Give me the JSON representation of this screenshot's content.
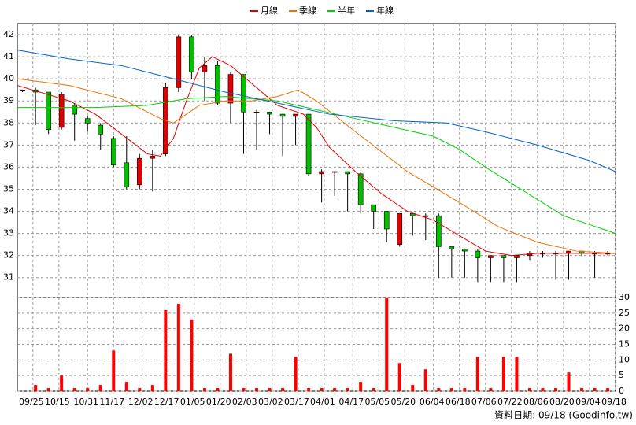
{
  "chart_data": {
    "type": "candlestick",
    "footer": "資料日期: 09/18 (Goodinfo.tw)",
    "xlim": [
      0,
      230
    ],
    "xticks": [
      {
        "value": 6,
        "label": "09/25"
      },
      {
        "value": 16,
        "label": "10/15"
      },
      {
        "value": 27,
        "label": "10/31"
      },
      {
        "value": 37,
        "label": "11/17"
      },
      {
        "value": 48,
        "label": "12/02"
      },
      {
        "value": 58,
        "label": "12/17"
      },
      {
        "value": 68,
        "label": "01/05"
      },
      {
        "value": 78,
        "label": "01/20"
      },
      {
        "value": 88,
        "label": "02/03"
      },
      {
        "value": 98,
        "label": "03/02"
      },
      {
        "value": 108,
        "label": "03/17"
      },
      {
        "value": 118,
        "label": "04/01"
      },
      {
        "value": 129,
        "label": "04/17"
      },
      {
        "value": 139,
        "label": "05/05"
      },
      {
        "value": 149,
        "label": "05/20"
      },
      {
        "value": 160,
        "label": "06/04"
      },
      {
        "value": 170,
        "label": "06/18"
      },
      {
        "value": 180,
        "label": "07/06"
      },
      {
        "value": 190,
        "label": "07/22"
      },
      {
        "value": 200,
        "label": "08/06"
      },
      {
        "value": 210,
        "label": "08/20"
      },
      {
        "value": 220,
        "label": "09/04"
      },
      {
        "value": 230,
        "label": "09/18"
      }
    ],
    "ylim": [
      30.1,
      42.5
    ],
    "yticks": [
      31,
      32,
      33,
      34,
      35,
      36,
      37,
      38,
      39,
      40,
      41,
      42
    ],
    "grid": true,
    "up_color": "#e00000",
    "down_color": "#00c000",
    "x": [
      2,
      7,
      12,
      17,
      22,
      27,
      32,
      37,
      42,
      47,
      52,
      57,
      62,
      67,
      72,
      77,
      82,
      87,
      92,
      97,
      102,
      107,
      112,
      117,
      122,
      127,
      132,
      137,
      142,
      147,
      152,
      157,
      162,
      167,
      172,
      177,
      182,
      187,
      192,
      197,
      202,
      207,
      212,
      217,
      222,
      227
    ],
    "open": [
      39.5,
      39.5,
      39.4,
      37.8,
      38.8,
      38.2,
      37.9,
      37.3,
      36.2,
      35.2,
      36.4,
      36.6,
      39.6,
      41.9,
      40.3,
      40.6,
      38.9,
      40.2,
      38.5,
      38.5,
      38.4,
      38.3,
      38.4,
      35.7,
      35.8,
      35.8,
      35.7,
      34.3,
      34.0,
      32.5,
      33.9,
      33.8,
      33.8,
      32.4,
      32.3,
      32.2,
      31.9,
      32.0,
      31.9,
      32.0,
      32.1,
      32.1,
      32.1,
      32.2,
      32.1,
      32.1
    ],
    "high": [
      39.5,
      39.6,
      39.4,
      39.4,
      38.9,
      38.3,
      38.0,
      37.4,
      37.4,
      36.6,
      36.8,
      39.8,
      42.0,
      42.0,
      41.0,
      40.8,
      40.3,
      40.2,
      38.6,
      38.5,
      38.4,
      38.4,
      38.4,
      35.9,
      35.8,
      35.8,
      35.8,
      34.3,
      34.0,
      33.9,
      33.9,
      33.9,
      33.9,
      32.4,
      32.3,
      32.3,
      32.0,
      32.0,
      32.0,
      32.2,
      32.2,
      32.2,
      32.2,
      32.2,
      32.2,
      32.2
    ],
    "low": [
      39.4,
      37.9,
      37.5,
      37.7,
      37.2,
      37.6,
      36.8,
      36.0,
      35.0,
      35.0,
      34.9,
      36.5,
      39.4,
      40.0,
      39.0,
      38.8,
      38.0,
      36.6,
      36.8,
      37.5,
      36.5,
      37.0,
      35.6,
      34.4,
      34.7,
      34.0,
      33.9,
      33.2,
      32.6,
      32.4,
      32.9,
      32.7,
      31.0,
      31.0,
      31.0,
      30.8,
      30.8,
      30.8,
      30.8,
      31.8,
      31.9,
      30.9,
      30.9,
      32.0,
      31.0,
      32.0
    ],
    "close": [
      39.5,
      39.4,
      37.7,
      39.3,
      38.4,
      38.0,
      37.5,
      36.1,
      35.1,
      36.4,
      36.5,
      39.6,
      41.9,
      40.3,
      40.6,
      38.9,
      40.2,
      38.5,
      38.5,
      38.4,
      38.3,
      38.4,
      35.7,
      35.8,
      35.8,
      35.7,
      34.3,
      34.0,
      33.2,
      33.9,
      33.8,
      33.8,
      32.4,
      32.3,
      32.2,
      31.9,
      32.0,
      31.9,
      32.0,
      32.1,
      32.1,
      32.1,
      32.2,
      32.1,
      32.1,
      32.1
    ],
    "series": [
      {
        "name": "月線",
        "color": "#e00000",
        "x": [
          0,
          20,
          30,
          40,
          50,
          55,
          60,
          65,
          70,
          75,
          82,
          90,
          100,
          110,
          115,
          120,
          130,
          140,
          150,
          160,
          170,
          180,
          190,
          200,
          210,
          230
        ],
        "values": [
          39.7,
          39.0,
          38.4,
          37.5,
          36.6,
          36.5,
          37.3,
          39.0,
          40.5,
          41.0,
          40.6,
          39.8,
          38.8,
          38.4,
          37.8,
          36.9,
          35.8,
          34.8,
          34.0,
          33.6,
          32.9,
          32.2,
          32.0,
          32.1,
          32.1,
          32.1
        ]
      },
      {
        "name": "季線",
        "color": "#f07000",
        "x": [
          0,
          20,
          40,
          55,
          60,
          70,
          80,
          90,
          100,
          108,
          115,
          130,
          150,
          170,
          185,
          200,
          215,
          230
        ],
        "values": [
          40.0,
          39.7,
          39.1,
          38.2,
          38.0,
          38.8,
          39.0,
          39.0,
          39.2,
          39.5,
          39.0,
          37.6,
          35.8,
          34.4,
          33.3,
          32.6,
          32.2,
          32.1
        ]
      },
      {
        "name": "半年",
        "color": "#00d000",
        "x": [
          0,
          30,
          50,
          65,
          80,
          100,
          115,
          130,
          145,
          160,
          170,
          180,
          195,
          210,
          230
        ],
        "values": [
          38.7,
          38.7,
          38.8,
          39.1,
          39.2,
          39.0,
          38.6,
          38.2,
          37.8,
          37.4,
          36.8,
          36.0,
          34.9,
          33.8,
          33.0
        ]
      },
      {
        "name": "年線",
        "color": "#0060d0",
        "x": [
          0,
          20,
          40,
          60,
          80,
          100,
          120,
          145,
          165,
          180,
          200,
          220,
          230
        ],
        "values": [
          41.3,
          40.9,
          40.6,
          40.0,
          39.4,
          38.9,
          38.4,
          38.1,
          38.0,
          37.6,
          37.0,
          36.3,
          35.8
        ]
      }
    ],
    "volume": {
      "color": "#ff0000",
      "ylim": [
        0,
        30
      ],
      "yticks": [
        0,
        5,
        10,
        15,
        20,
        25,
        30
      ],
      "values": [
        0,
        2,
        1,
        5,
        1,
        1,
        2,
        13,
        3,
        1,
        2,
        26,
        28,
        23,
        1,
        1,
        12,
        1,
        1,
        1,
        1,
        11,
        1,
        1,
        1,
        1,
        3,
        1,
        30,
        9,
        2,
        7,
        1,
        1,
        1,
        11,
        1,
        11,
        11,
        1,
        1,
        1,
        6,
        1,
        1,
        1
      ]
    }
  }
}
